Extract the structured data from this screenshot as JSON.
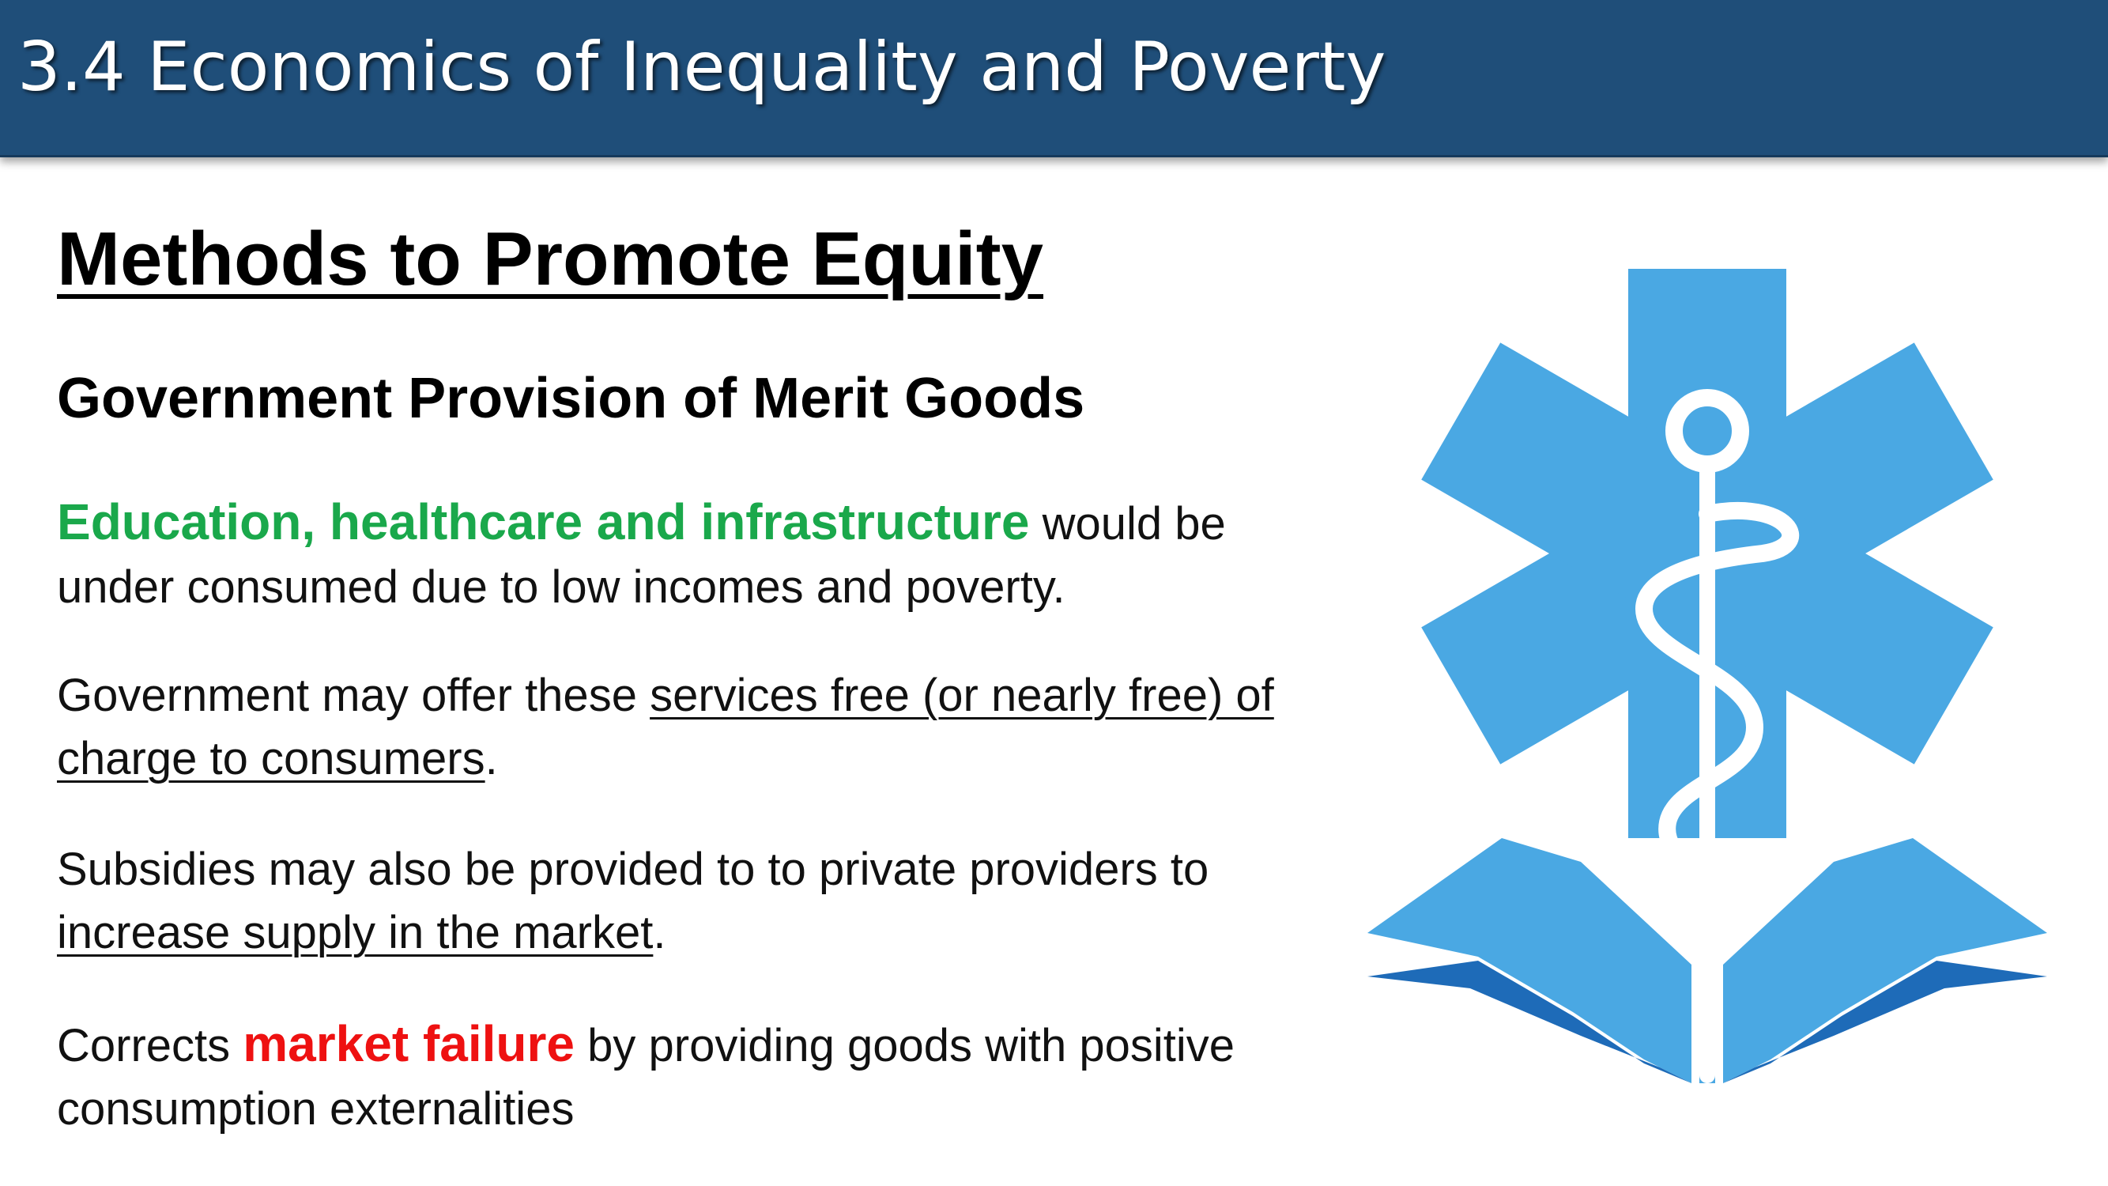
{
  "header": {
    "title": "3.4 Economics of Inequality and Poverty"
  },
  "heading": "Methods to Promote Equity",
  "subheading": "Government Provision of Merit Goods",
  "para1": {
    "highlight": "Education, healthcare and infrastructure",
    "rest": " would be under consumed due to low incomes and poverty."
  },
  "para2": {
    "before": "Government may offer these ",
    "underlined": "services free (or nearly free) of charge to consumers",
    "after": "."
  },
  "para3": {
    "before": "Subsidies may also be provided to to private providers to ",
    "underlined": "increase supply in the market",
    "after": "."
  },
  "para4": {
    "before": "Corrects ",
    "highlight": "market failure",
    "after": " by providing goods with positive consumption externalities"
  },
  "logo": {
    "icon": "star-of-life-rod-of-asclepius-open-book-icon",
    "colors": {
      "star": "#4aa8e3",
      "book_light": "#4aa8e3",
      "book_dark": "#1e6bb8"
    }
  }
}
